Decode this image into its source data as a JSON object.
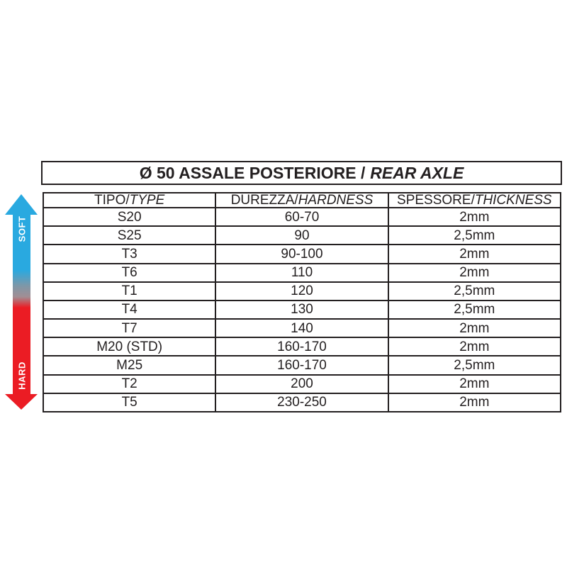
{
  "title": {
    "main": "Ø 50 ASSALE POSTERIORE /",
    "italic": "REAR AXLE"
  },
  "hardness_arrow": {
    "soft_label": "SOFT",
    "hard_label": "HARD"
  },
  "colors": {
    "soft_blue": "#29A9E0",
    "hard_red": "#EB1C24",
    "line": "#231F20"
  },
  "table": {
    "headers": [
      {
        "main": "TIPO/",
        "italic": "TYPE"
      },
      {
        "main": "DUREZZA/",
        "italic": "HARDNESS"
      },
      {
        "main": "SPESSORE/",
        "italic": "THICKNESS"
      }
    ],
    "rows": [
      [
        "S20",
        "60-70",
        "2mm"
      ],
      [
        "S25",
        "90",
        "2,5mm"
      ],
      [
        "T3",
        "90-100",
        "2mm"
      ],
      [
        "T6",
        "110",
        "2mm"
      ],
      [
        "T1",
        "120",
        "2,5mm"
      ],
      [
        "T4",
        "130",
        "2,5mm"
      ],
      [
        "T7",
        "140",
        "2mm"
      ],
      [
        "M20 (STD)",
        "160-170",
        "2mm"
      ],
      [
        "M25",
        "160-170",
        "2,5mm"
      ],
      [
        "T2",
        "200",
        "2mm"
      ],
      [
        "T5",
        "230-250",
        "2mm"
      ]
    ]
  }
}
